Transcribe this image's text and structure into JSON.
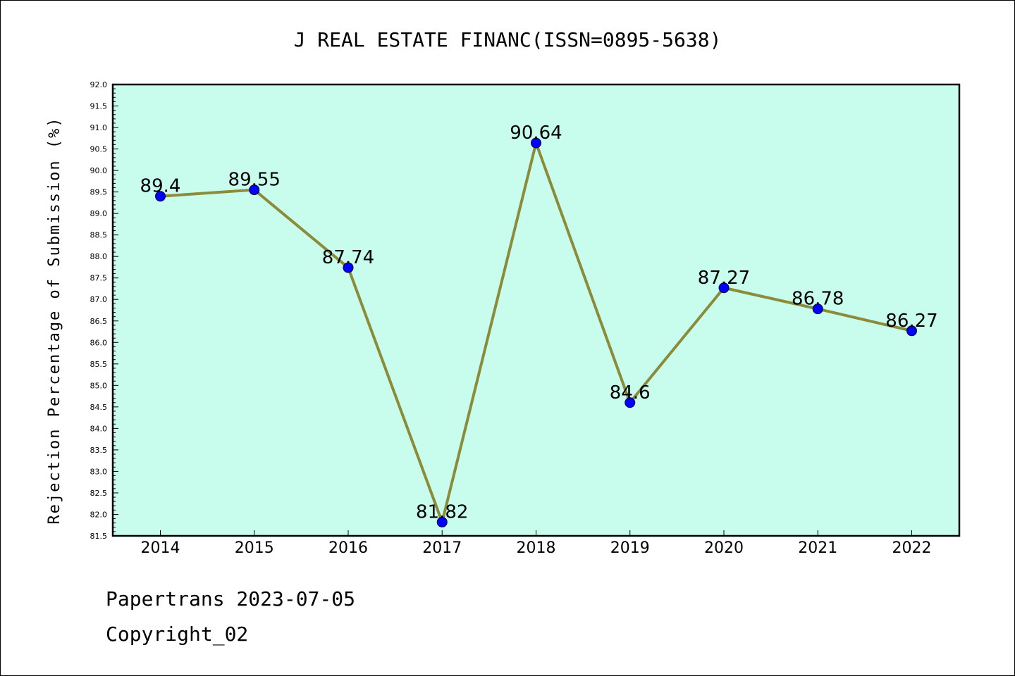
{
  "chart_data": {
    "type": "line",
    "title": "J REAL ESTATE FINANC(ISSN=0895-5638)",
    "xlabel": "",
    "ylabel": "Rejection Percentage of Submission (%)",
    "ylim": [
      81.5,
      92.0
    ],
    "yticks": [
      "81.5",
      "82.0",
      "82.5",
      "83.0",
      "83.5",
      "84.0",
      "84.5",
      "85.0",
      "85.5",
      "86.0",
      "86.5",
      "87.0",
      "87.5",
      "88.0",
      "88.5",
      "89.0",
      "89.5",
      "90.0",
      "90.5",
      "91.0",
      "91.5",
      "92.0"
    ],
    "categories": [
      "2014",
      "2015",
      "2016",
      "2017",
      "2018",
      "2019",
      "2020",
      "2021",
      "2022"
    ],
    "values": [
      89.4,
      89.55,
      87.74,
      81.82,
      90.64,
      84.6,
      87.27,
      86.78,
      86.27
    ],
    "value_labels": [
      "89.4",
      "89.55",
      "87.74",
      "81.82",
      "90.64",
      "84.6",
      "87.27",
      "86.78",
      "86.27"
    ],
    "grid": false,
    "colors": {
      "plot_background": "#c8fdee",
      "line": "#8b8b3a",
      "marker": "#0000ff"
    }
  },
  "footer": {
    "line1": "Papertrans 2023-07-05",
    "line2": "Copyright_02"
  }
}
